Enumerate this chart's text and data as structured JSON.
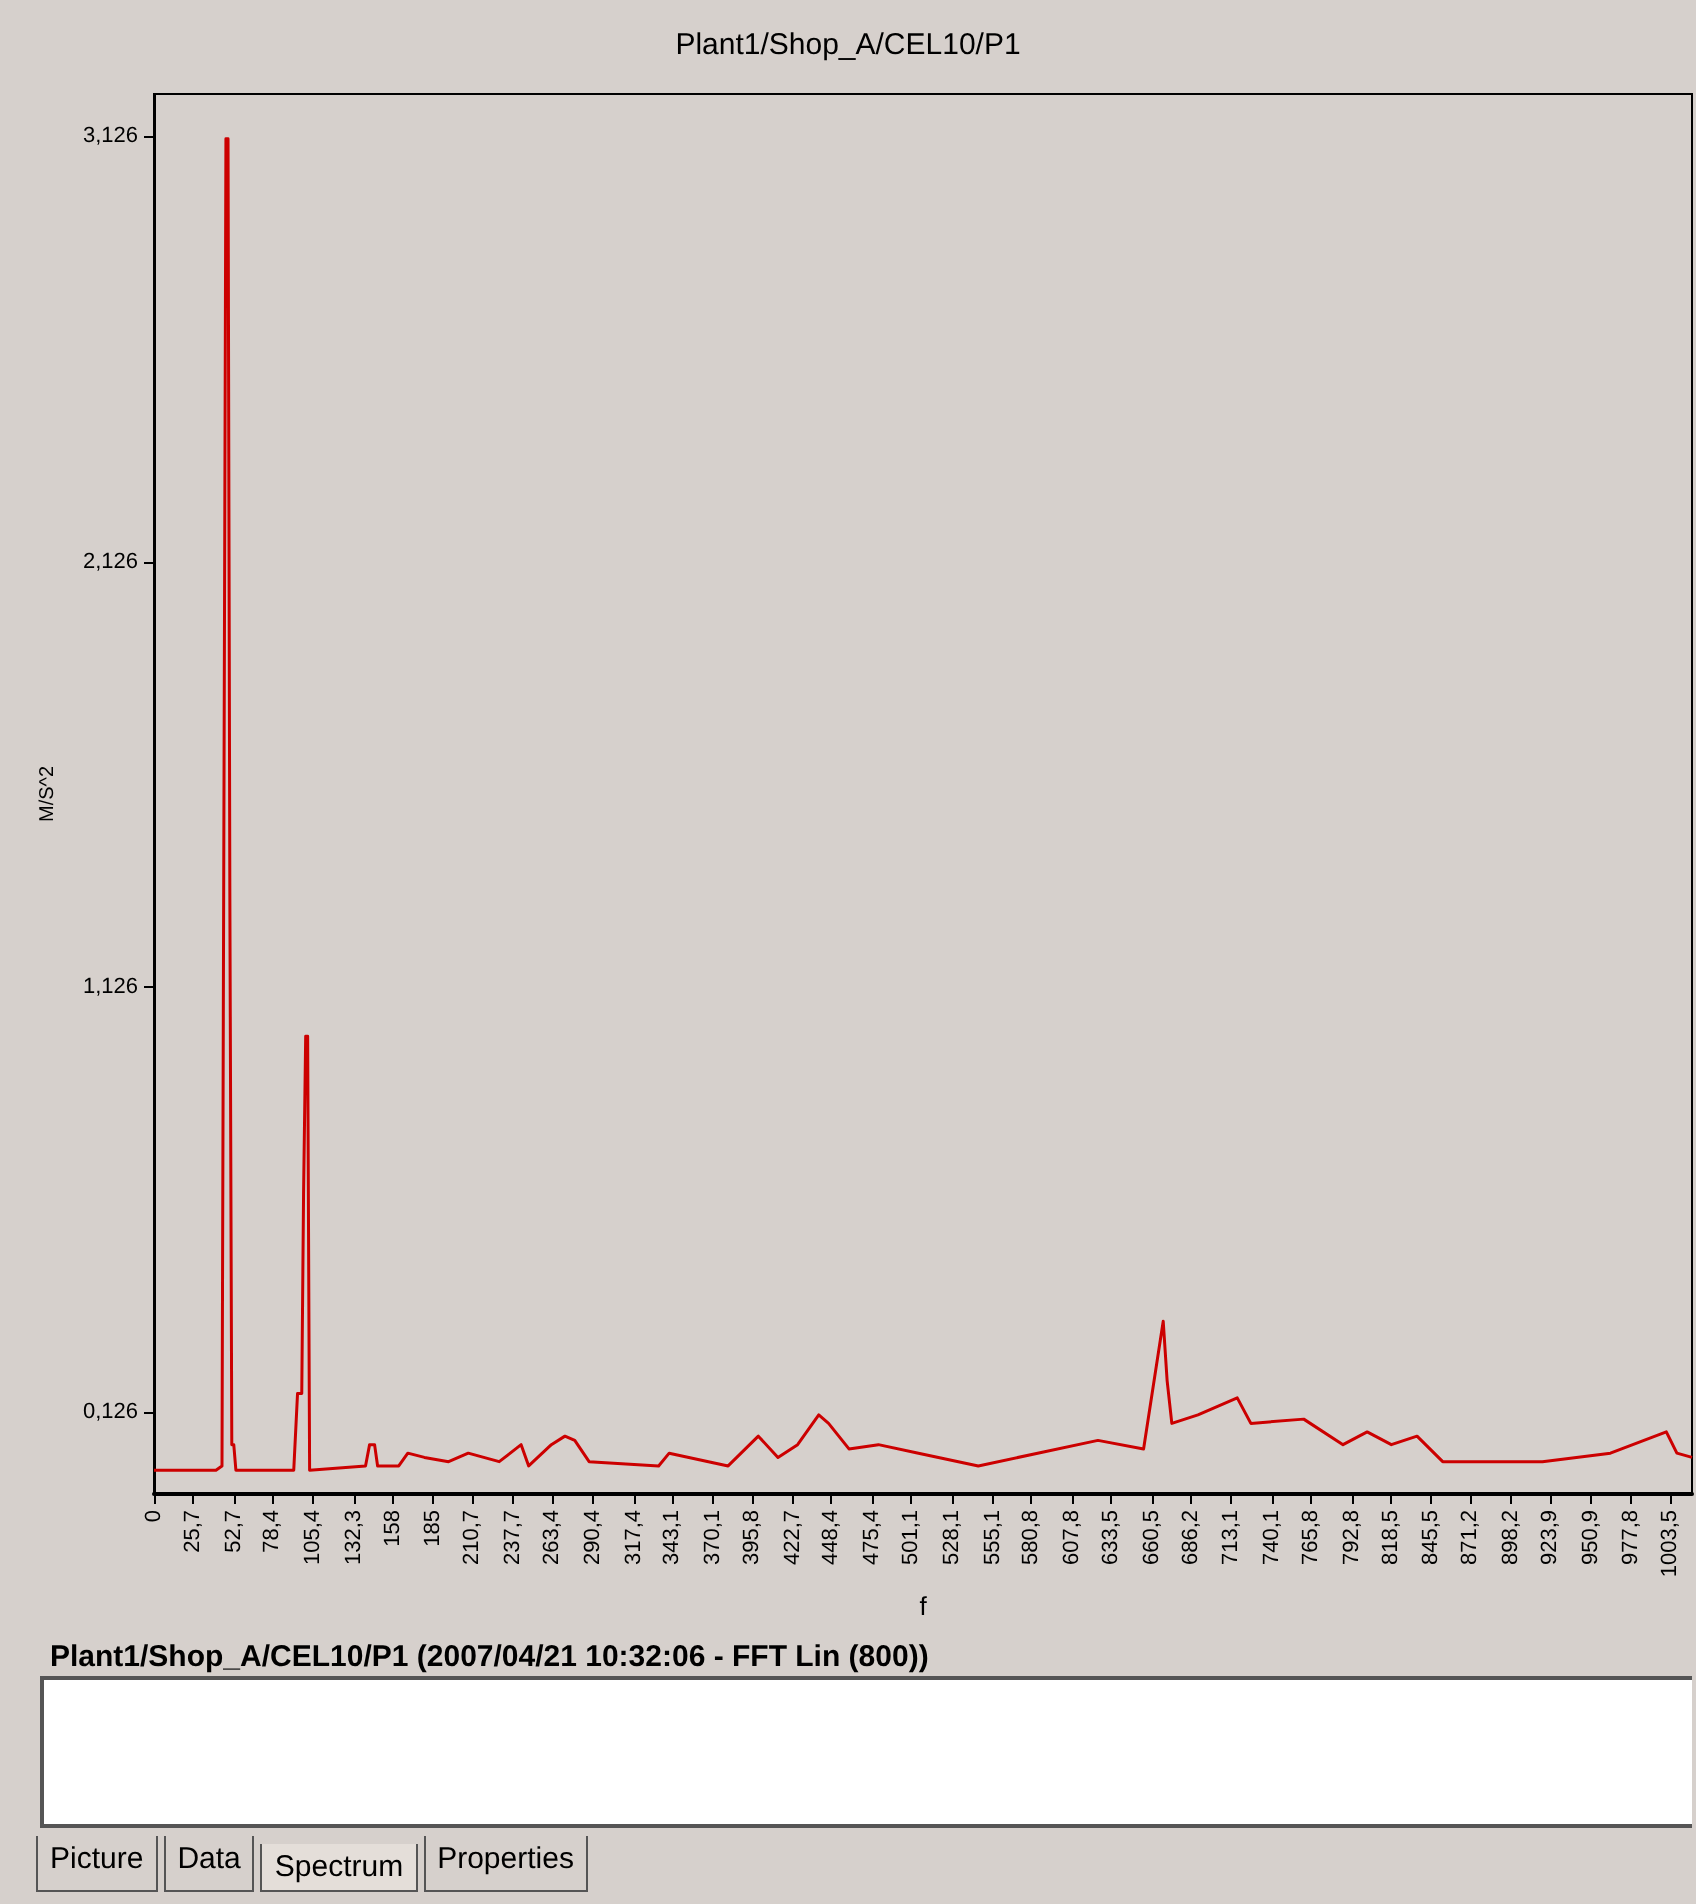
{
  "chart_data": {
    "type": "line",
    "title": "Plant1/Shop_A/CEL10/P1",
    "subtitle": "Plant1/Shop_A/CEL10/P1 (2007/04/21 10:32:06 - FFT Lin (800))",
    "xlabel": "f",
    "ylabel": "M/S^2",
    "annotations": [
      "Picture",
      "Data",
      "Spectrum",
      "Properties"
    ],
    "color": "#cc0000",
    "marker": "none",
    "x": [
      0,
      41,
      45,
      47.6,
      49,
      50.2,
      51.5,
      52.8,
      54.2,
      92.5,
      95,
      97.8,
      99,
      100.4,
      101.7,
      103,
      140,
      142.7,
      146,
      148,
      162,
      168,
      179,
      195,
      208,
      228.5,
      243,
      248,
      263,
      272,
      278.5,
      288,
      334,
      341,
      380,
      400,
      413,
      426,
      440,
      446.5,
      460,
      479.5,
      506,
      545.6,
      624.8,
      655,
      668,
      670.6,
      673.7,
      691,
      717,
      726,
      761,
      787,
      803,
      819,
      836,
      853,
      919,
      964,
      1001,
      1008,
      1018
    ],
    "values": [
      -0.01,
      -0.01,
      0.0,
      3.12,
      3.12,
      1.35,
      0.05,
      0.05,
      -0.01,
      -0.01,
      0.17,
      0.17,
      0.64,
      1.01,
      1.01,
      -0.01,
      0.0,
      0.05,
      0.05,
      0.0,
      0.0,
      0.03,
      0.02,
      0.01,
      0.03,
      0.01,
      0.05,
      0.0,
      0.05,
      0.07,
      0.06,
      0.01,
      0.0,
      0.03,
      0.0,
      0.07,
      0.02,
      0.05,
      0.12,
      0.1,
      0.04,
      0.05,
      0.03,
      0.0,
      0.06,
      0.04,
      0.34,
      0.2,
      0.1,
      0.12,
      0.16,
      0.1,
      0.11,
      0.05,
      0.08,
      0.05,
      0.07,
      0.01,
      0.01,
      0.03,
      0.08,
      0.03,
      0.02
    ],
    "xlim": [
      0,
      1018
    ],
    "xticks": [
      0,
      {
        "value": 25.7,
        "label": "25,7"
      },
      {
        "value": 52.7,
        "label": "52,7"
      },
      {
        "value": 78.4,
        "label": "78,4"
      },
      {
        "value": 105.4,
        "label": "105,4"
      },
      {
        "value": 132.3,
        "label": "132,3"
      },
      158,
      185,
      {
        "value": 210.7,
        "label": "210,7"
      },
      {
        "value": 237.7,
        "label": "237,7"
      },
      {
        "value": 263.4,
        "label": "263,4"
      },
      {
        "value": 290.4,
        "label": "290,4"
      },
      {
        "value": 317.4,
        "label": "317,4"
      },
      {
        "value": 343.1,
        "label": "343,1"
      },
      {
        "value": 370.1,
        "label": "370,1"
      },
      {
        "value": 395.8,
        "label": "395,8"
      },
      {
        "value": 422.7,
        "label": "422,7"
      },
      {
        "value": 448.4,
        "label": "448,4"
      },
      {
        "value": 475.4,
        "label": "475,4"
      },
      {
        "value": 501.1,
        "label": "501,1"
      },
      {
        "value": 528.1,
        "label": "528,1"
      },
      {
        "value": 555.1,
        "label": "555,1"
      },
      {
        "value": 580.8,
        "label": "580,8"
      },
      {
        "value": 607.8,
        "label": "607,8"
      },
      {
        "value": 633.5,
        "label": "633,5"
      },
      {
        "value": 660.5,
        "label": "660,5"
      },
      {
        "value": 686.2,
        "label": "686,2"
      },
      {
        "value": 713.1,
        "label": "713,1"
      },
      {
        "value": 740.1,
        "label": "740,1"
      },
      {
        "value": 765.8,
        "label": "765,8"
      },
      {
        "value": 792.8,
        "label": "792,8"
      },
      {
        "value": 818.5,
        "label": "818,5"
      },
      {
        "value": 845.5,
        "label": "845,5"
      },
      {
        "value": 871.2,
        "label": "871,2"
      },
      {
        "value": 898.2,
        "label": "898,2"
      },
      {
        "value": 923.9,
        "label": "923,9"
      },
      {
        "value": 950.9,
        "label": "950,9"
      },
      {
        "value": 977.8,
        "label": "977,8"
      },
      {
        "value": 1003.5,
        "label": "1003,5"
      }
    ],
    "ylim": [
      -0.066,
      3.225
    ],
    "yticks": [
      {
        "value": 0.126,
        "label": "0,126"
      },
      {
        "value": 1.126,
        "label": "1,126"
      },
      {
        "value": 2.126,
        "label": "2,126"
      },
      {
        "value": 3.126,
        "label": "3,126"
      }
    ]
  }
}
